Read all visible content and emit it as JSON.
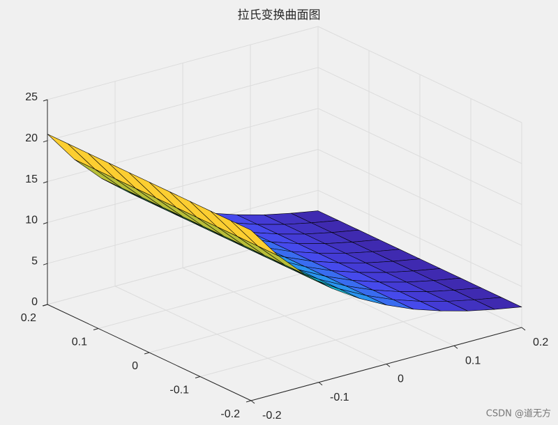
{
  "chart_data": {
    "type": "surface",
    "title": "拉氏变换曲面图",
    "x": [
      -0.2,
      -0.16,
      -0.12,
      -0.08,
      -0.04,
      0,
      0.04,
      0.08,
      0.12,
      0.16,
      0.2
    ],
    "y": [
      -0.2,
      -0.16,
      -0.12,
      -0.08,
      -0.04,
      0,
      0.04,
      0.08,
      0.12,
      0.16,
      0.2
    ],
    "z": [
      [
        20.8,
        16.8,
        13.6,
        11.0,
        8.9,
        7.2,
        5.8,
        4.7,
        3.8,
        3.1,
        2.5
      ],
      [
        20.8,
        16.8,
        13.6,
        11.0,
        8.9,
        7.2,
        5.8,
        4.7,
        3.8,
        3.1,
        2.5
      ],
      [
        20.8,
        16.8,
        13.6,
        11.0,
        8.9,
        7.2,
        5.8,
        4.7,
        3.8,
        3.1,
        2.5
      ],
      [
        20.8,
        16.8,
        13.6,
        11.0,
        8.9,
        7.2,
        5.8,
        4.7,
        3.8,
        3.1,
        2.5
      ],
      [
        20.8,
        16.8,
        13.6,
        11.0,
        8.9,
        7.2,
        5.8,
        4.7,
        3.8,
        3.1,
        2.5
      ],
      [
        20.8,
        16.8,
        13.6,
        11.0,
        8.9,
        7.2,
        5.8,
        4.7,
        3.8,
        3.1,
        2.5
      ],
      [
        20.8,
        16.8,
        13.6,
        11.0,
        8.9,
        7.2,
        5.8,
        4.7,
        3.8,
        3.1,
        2.5
      ],
      [
        20.8,
        16.8,
        13.6,
        11.0,
        8.9,
        7.2,
        5.8,
        4.7,
        3.8,
        3.1,
        2.5
      ],
      [
        20.8,
        16.8,
        13.6,
        11.0,
        8.9,
        7.2,
        5.8,
        4.7,
        3.8,
        3.1,
        2.5
      ],
      [
        20.8,
        16.8,
        13.6,
        11.0,
        8.9,
        7.2,
        5.8,
        4.7,
        3.8,
        3.1,
        2.5
      ],
      [
        20.8,
        16.8,
        13.6,
        11.0,
        8.9,
        7.2,
        5.8,
        4.7,
        3.8,
        3.1,
        2.5
      ]
    ],
    "xlim": [
      -0.2,
      0.2
    ],
    "xticks": [
      -0.2,
      -0.1,
      0,
      0.1,
      0.2
    ],
    "ylim": [
      -0.2,
      0.2
    ],
    "yticks": [
      -0.2,
      -0.1,
      0,
      0.1,
      0.2
    ],
    "zlim": [
      0,
      25
    ],
    "zticks": [
      0,
      5,
      10,
      15,
      20,
      25
    ],
    "grid": true,
    "colormap": [
      "#3e26a8",
      "#4746eb",
      "#2d8ef5",
      "#17b9c2",
      "#5fc963",
      "#c6bc31",
      "#fdc039",
      "#f9fb15"
    ],
    "edge_color": "#000000"
  },
  "watermark": "CSDN @道无方"
}
